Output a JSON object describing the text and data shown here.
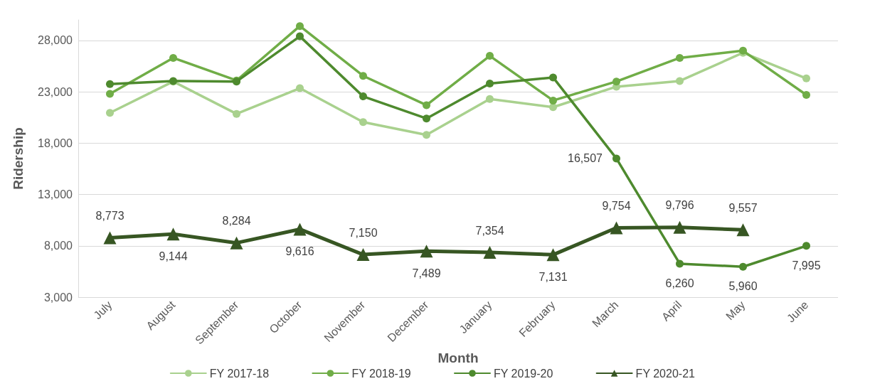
{
  "chart_data": {
    "type": "line",
    "xlabel": "Month",
    "ylabel": "Ridership",
    "categories": [
      "July",
      "August",
      "September",
      "October",
      "November",
      "December",
      "January",
      "February",
      "March",
      "April",
      "May",
      "June"
    ],
    "series": [
      {
        "name": "FY 2017-18",
        "color": "#a9d18e",
        "marker": "circle",
        "values": [
          20950,
          24000,
          20850,
          23350,
          20050,
          18800,
          22300,
          21500,
          23500,
          24050,
          26800,
          24300
        ]
      },
      {
        "name": "FY 2018-19",
        "color": "#70ad47",
        "marker": "circle",
        "values": [
          22800,
          26300,
          24100,
          29400,
          24550,
          21700,
          26500,
          22150,
          24000,
          26300,
          27000,
          22700
        ]
      },
      {
        "name": "FY 2019-20",
        "color": "#4e8a2e",
        "marker": "circle",
        "values": [
          23750,
          24050,
          24000,
          28400,
          22550,
          20400,
          23800,
          24400,
          16507,
          6260,
          5960,
          7995
        ],
        "value_labels": [
          null,
          null,
          null,
          null,
          null,
          null,
          null,
          null,
          "16,507",
          "6,260",
          "5,960",
          "7,995"
        ]
      },
      {
        "name": "FY 2020-21",
        "color": "#375623",
        "marker": "triangle",
        "values": [
          8773,
          9144,
          8284,
          9616,
          7150,
          7489,
          7354,
          7131,
          9754,
          9796,
          9557,
          null
        ],
        "value_labels": [
          "8,773",
          "9,144",
          "8,284",
          "9,616",
          "7,150",
          "7,489",
          "7,354",
          "7,131",
          "9,754",
          "9,796",
          "9,557",
          null
        ]
      }
    ],
    "ylim": [
      3000,
      30000
    ],
    "yticks": [
      {
        "value": 3000,
        "label": "3,000"
      },
      {
        "value": 8000,
        "label": "8,000"
      },
      {
        "value": 13000,
        "label": "13,000"
      },
      {
        "value": 18000,
        "label": "18,000"
      },
      {
        "value": 23000,
        "label": "23,000"
      },
      {
        "value": 28000,
        "label": "28,000"
      }
    ],
    "grid": "y",
    "legend": "bottom"
  }
}
